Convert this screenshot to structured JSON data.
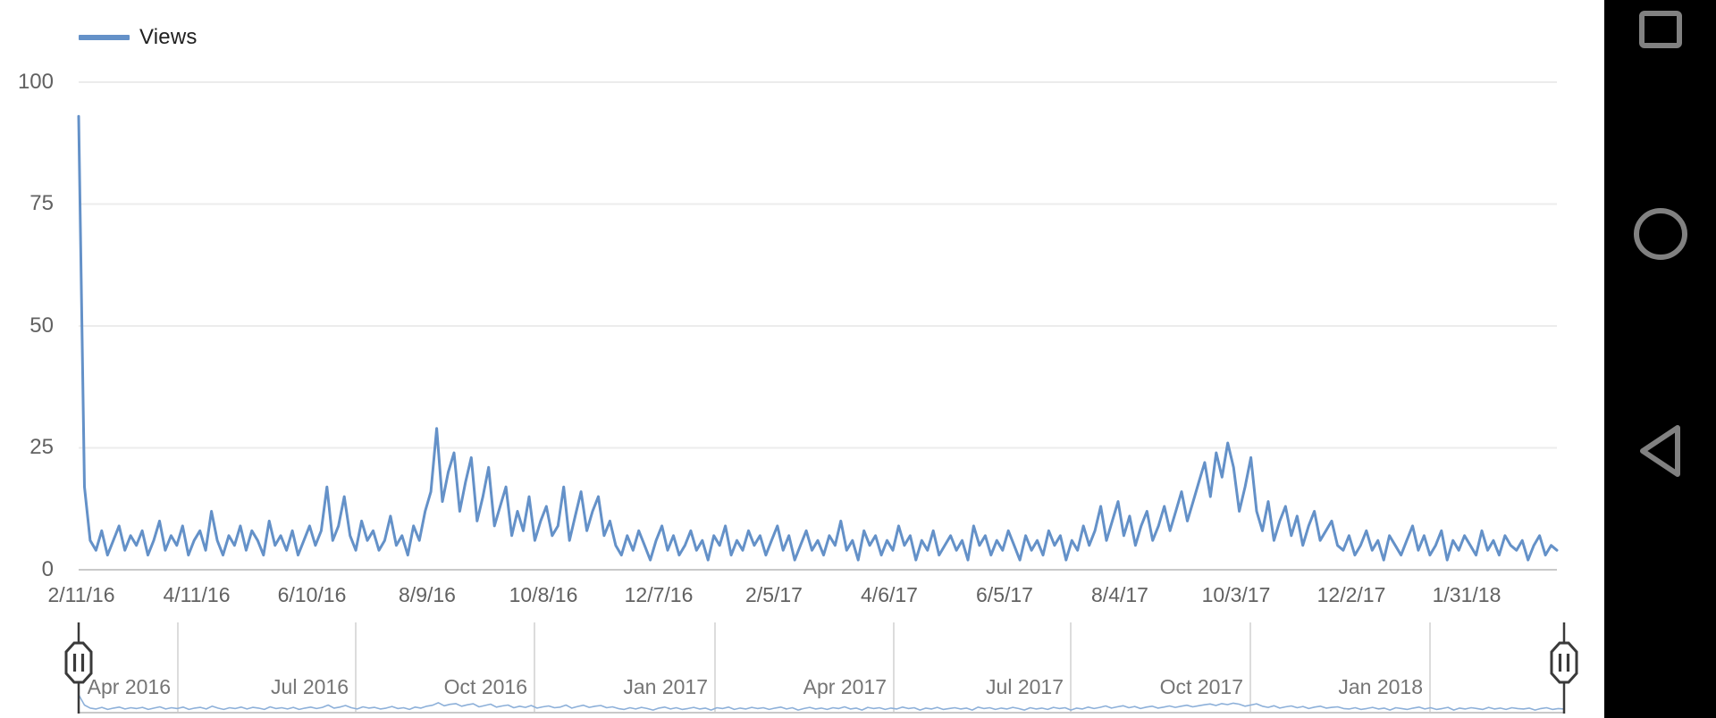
{
  "legend": {
    "label": "Views"
  },
  "colors": {
    "line": "#6491c8",
    "mini_line": "#8db0d9",
    "grid": "#ececec",
    "axis_baseline": "#c9c9c9",
    "selector_grid": "#dcdcdc",
    "handle_stroke": "#3a3a3a",
    "tick_text": "#616161",
    "legend_text": "#212121",
    "navbar_bg": "#000000",
    "navbar_icon": "#818181"
  },
  "y_axis": {
    "ticks": [
      "100",
      "75",
      "50",
      "25",
      "0"
    ]
  },
  "x_axis": {
    "ticks": [
      "2/11/16",
      "4/11/16",
      "6/10/16",
      "8/9/16",
      "10/8/16",
      "12/7/16",
      "2/5/17",
      "4/6/17",
      "6/5/17",
      "8/4/17",
      "10/3/17",
      "12/2/17",
      "1/31/18"
    ]
  },
  "range_selector": {
    "labels": [
      "Apr 2016",
      "Jul 2016",
      "Oct 2016",
      "Jan 2017",
      "Apr 2017",
      "Jul 2017",
      "Oct 2017",
      "Jan 2018"
    ],
    "left_handle_glyph": "||",
    "right_handle_glyph": "||"
  },
  "navbar": {
    "icons": [
      "recents-square",
      "home-circle",
      "back-triangle"
    ]
  },
  "chart_data": {
    "type": "line",
    "title": "",
    "xlabel": "",
    "ylabel": "",
    "ylim": [
      0,
      100
    ],
    "y_ticks": [
      0,
      25,
      50,
      75,
      100
    ],
    "grid": true,
    "legend_position": "top-left",
    "x_tick_labels": [
      "2/11/16",
      "4/11/16",
      "6/10/16",
      "8/9/16",
      "10/8/16",
      "12/7/16",
      "2/5/17",
      "4/6/17",
      "6/5/17",
      "8/4/17",
      "10/3/17",
      "12/2/17",
      "1/31/18"
    ],
    "navigator_labels": [
      "Apr 2016",
      "Jul 2016",
      "Oct 2016",
      "Jan 2017",
      "Apr 2017",
      "Jul 2017",
      "Oct 2017",
      "Jan 2018"
    ],
    "series": [
      {
        "name": "Views",
        "start_date": "2/11/16",
        "end_date": "3/20/18",
        "step_days": 3,
        "values": [
          93,
          17,
          6,
          4,
          8,
          3,
          6,
          9,
          4,
          7,
          5,
          8,
          3,
          6,
          10,
          4,
          7,
          5,
          9,
          3,
          6,
          8,
          4,
          12,
          6,
          3,
          7,
          5,
          9,
          4,
          8,
          6,
          3,
          10,
          5,
          7,
          4,
          8,
          3,
          6,
          9,
          5,
          8,
          17,
          6,
          9,
          15,
          7,
          4,
          10,
          6,
          8,
          4,
          6,
          11,
          5,
          7,
          3,
          9,
          6,
          12,
          16,
          29,
          14,
          20,
          24,
          12,
          18,
          23,
          10,
          15,
          21,
          9,
          13,
          17,
          7,
          12,
          8,
          15,
          6,
          10,
          13,
          7,
          9,
          17,
          6,
          11,
          16,
          8,
          12,
          15,
          7,
          10,
          5,
          3,
          7,
          4,
          8,
          5,
          2,
          6,
          9,
          4,
          7,
          3,
          5,
          8,
          4,
          6,
          2,
          7,
          5,
          9,
          3,
          6,
          4,
          8,
          5,
          7,
          3,
          6,
          9,
          4,
          7,
          2,
          5,
          8,
          4,
          6,
          3,
          7,
          5,
          10,
          4,
          6,
          2,
          8,
          5,
          7,
          3,
          6,
          4,
          9,
          5,
          7,
          2,
          6,
          4,
          8,
          3,
          5,
          7,
          4,
          6,
          2,
          9,
          5,
          7,
          3,
          6,
          4,
          8,
          5,
          2,
          7,
          4,
          6,
          3,
          8,
          5,
          7,
          2,
          6,
          4,
          9,
          5,
          8,
          13,
          6,
          10,
          14,
          7,
          11,
          5,
          9,
          12,
          6,
          9,
          13,
          8,
          12,
          16,
          10,
          14,
          18,
          22,
          15,
          24,
          19,
          26,
          21,
          12,
          17,
          23,
          12,
          8,
          14,
          6,
          10,
          13,
          7,
          11,
          5,
          9,
          12,
          6,
          8,
          10,
          5,
          4,
          7,
          3,
          5,
          8,
          4,
          6,
          2,
          7,
          5,
          3,
          6,
          9,
          4,
          7,
          3,
          5,
          8,
          2,
          6,
          4,
          7,
          5,
          3,
          8,
          4,
          6,
          3,
          7,
          5,
          4,
          6,
          2,
          5,
          7,
          3,
          5,
          4
        ]
      }
    ]
  }
}
